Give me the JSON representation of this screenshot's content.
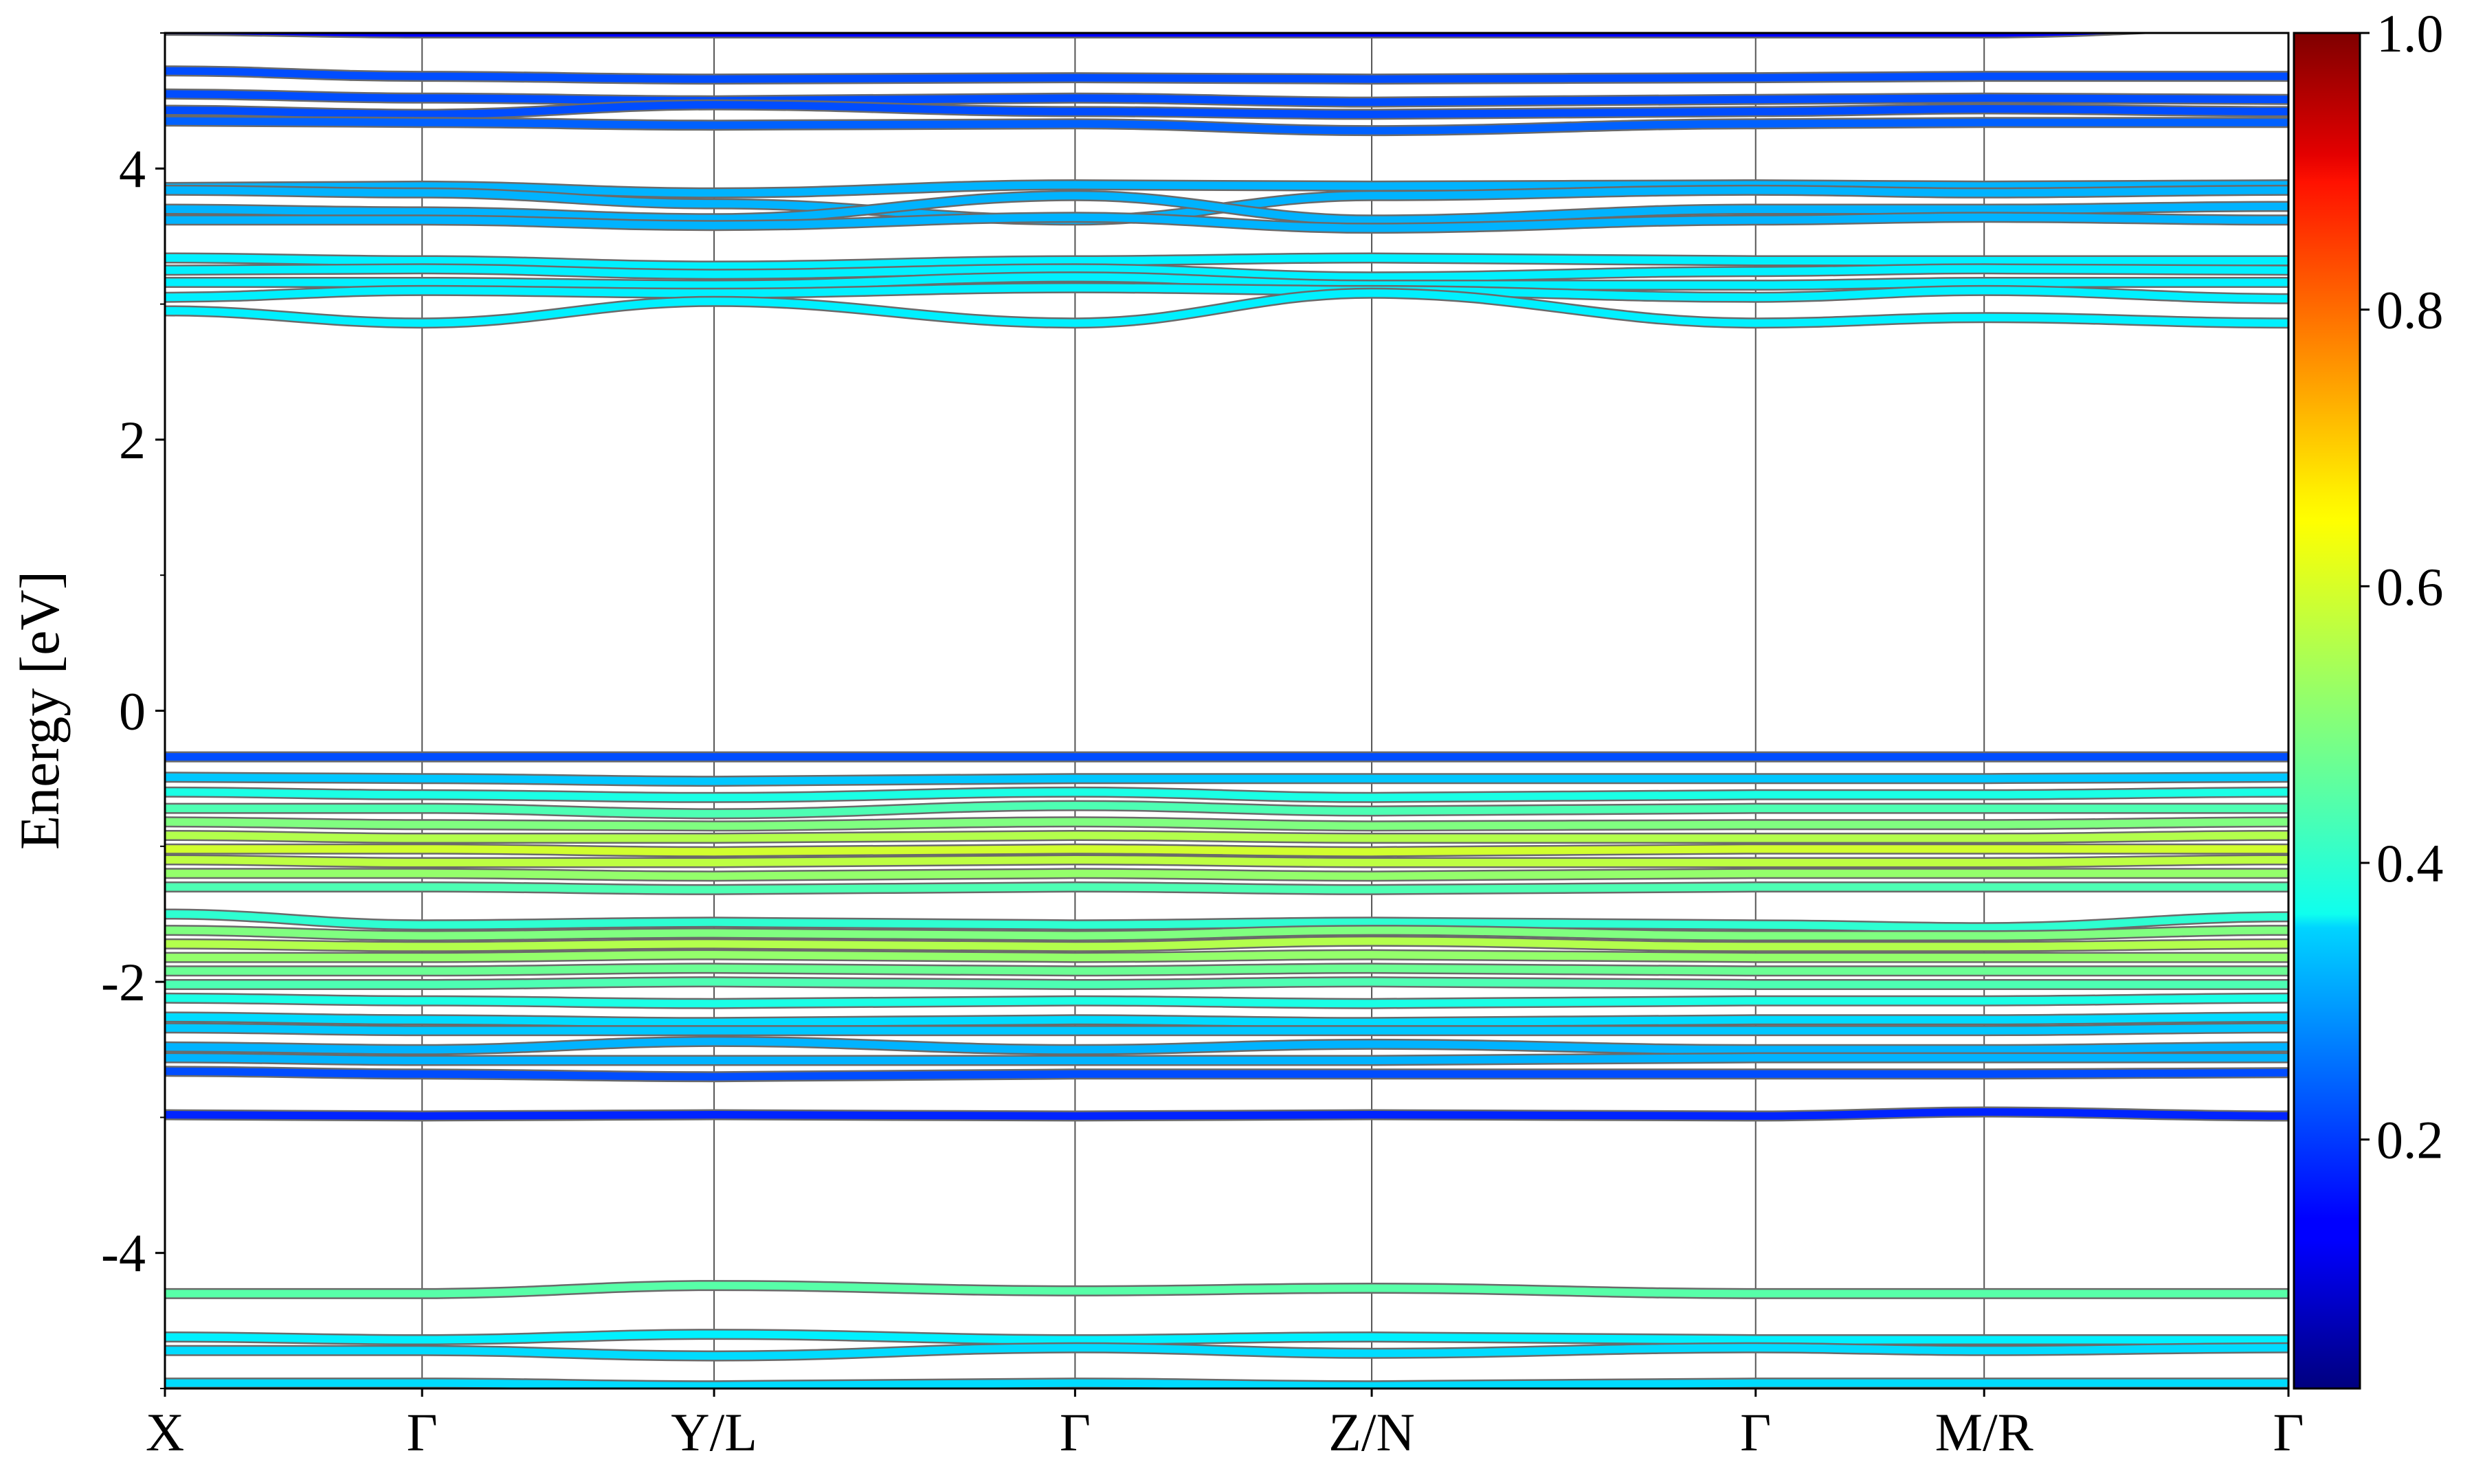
{
  "chart_data": {
    "type": "line",
    "title": "",
    "xlabel": "",
    "ylabel": "Energy [eV]",
    "ylim": [
      -5,
      5
    ],
    "yticks": [
      {
        "value": 4,
        "label": "4"
      },
      {
        "value": 2,
        "label": "2"
      },
      {
        "value": 0,
        "label": "0"
      },
      {
        "value": -2,
        "label": "-2"
      },
      {
        "value": -4,
        "label": "-4"
      }
    ],
    "kpoints": [
      {
        "label": "X",
        "pos": 0.0
      },
      {
        "label": "Γ",
        "pos": 0.1211
      },
      {
        "label": "Y/L",
        "pos": 0.2586
      },
      {
        "label": "Γ",
        "pos": 0.4286
      },
      {
        "label": "Z/N",
        "pos": 0.5683
      },
      {
        "label": "Γ",
        "pos": 0.7491
      },
      {
        "label": "M/R",
        "pos": 0.8567
      },
      {
        "label": "Γ",
        "pos": 1.0
      }
    ],
    "grid": "vertical lines at high-symmetry points",
    "colorbar": {
      "range": [
        0.02,
        1.0
      ],
      "ticks": [
        {
          "value": 0.2,
          "label": "0.2"
        },
        {
          "value": 0.4,
          "label": "0.4"
        },
        {
          "value": 0.6,
          "label": "0.6"
        },
        {
          "value": 0.8,
          "label": "0.8"
        },
        {
          "value": 1.0,
          "label": "1.0"
        }
      ],
      "colormap": "jet"
    },
    "series": [
      {
        "energies": [
          4.72,
          4.68,
          4.66,
          4.67,
          4.66,
          4.67,
          4.68,
          4.68
        ],
        "weight": 0.2
      },
      {
        "energies": [
          4.55,
          4.52,
          4.5,
          4.52,
          4.49,
          4.51,
          4.52,
          4.51
        ],
        "weight": 0.2
      },
      {
        "energies": [
          4.43,
          4.4,
          4.47,
          4.42,
          4.4,
          4.42,
          4.44,
          4.42
        ],
        "weight": 0.2
      },
      {
        "energies": [
          4.35,
          4.34,
          4.32,
          4.33,
          4.28,
          4.33,
          4.34,
          4.34
        ],
        "weight": 0.22
      },
      {
        "energies": [
          3.86,
          3.87,
          3.82,
          3.88,
          3.87,
          3.88,
          3.87,
          3.88
        ],
        "weight": 0.3
      },
      {
        "energies": [
          3.84,
          3.82,
          3.74,
          3.62,
          3.8,
          3.84,
          3.82,
          3.84
        ],
        "weight": 0.3
      },
      {
        "energies": [
          3.7,
          3.68,
          3.63,
          3.8,
          3.62,
          3.7,
          3.7,
          3.72
        ],
        "weight": 0.3
      },
      {
        "energies": [
          3.62,
          3.62,
          3.58,
          3.64,
          3.56,
          3.62,
          3.64,
          3.62
        ],
        "weight": 0.3
      },
      {
        "energies": [
          3.34,
          3.32,
          3.28,
          3.32,
          3.34,
          3.32,
          3.32,
          3.32
        ],
        "weight": 0.36
      },
      {
        "energies": [
          3.25,
          3.26,
          3.22,
          3.26,
          3.2,
          3.24,
          3.26,
          3.25
        ],
        "weight": 0.36
      },
      {
        "energies": [
          3.16,
          3.16,
          3.14,
          3.2,
          3.14,
          3.14,
          3.16,
          3.16
        ],
        "weight": 0.36
      },
      {
        "energies": [
          3.05,
          3.1,
          3.08,
          3.12,
          3.1,
          3.05,
          3.1,
          3.04
        ],
        "weight": 0.36
      },
      {
        "energies": [
          2.95,
          2.86,
          3.02,
          2.86,
          3.08,
          2.86,
          2.9,
          2.86
        ],
        "weight": 0.36
      },
      {
        "energies": [
          -0.34,
          -0.34,
          -0.34,
          -0.34,
          -0.34,
          -0.34,
          -0.34,
          -0.34
        ],
        "weight": 0.2
      },
      {
        "energies": [
          -0.49,
          -0.5,
          -0.52,
          -0.5,
          -0.5,
          -0.5,
          -0.5,
          -0.49
        ],
        "weight": 0.32
      },
      {
        "energies": [
          -0.6,
          -0.62,
          -0.64,
          -0.6,
          -0.64,
          -0.62,
          -0.62,
          -0.6
        ],
        "weight": 0.4
      },
      {
        "energies": [
          -0.72,
          -0.72,
          -0.76,
          -0.7,
          -0.74,
          -0.72,
          -0.72,
          -0.72
        ],
        "weight": 0.45
      },
      {
        "energies": [
          -0.82,
          -0.84,
          -0.85,
          -0.82,
          -0.85,
          -0.84,
          -0.84,
          -0.82
        ],
        "weight": 0.5
      },
      {
        "energies": [
          -0.92,
          -0.94,
          -0.94,
          -0.92,
          -0.94,
          -0.94,
          -0.94,
          -0.92
        ],
        "weight": 0.55
      },
      {
        "energies": [
          -1.02,
          -1.02,
          -1.04,
          -1.02,
          -1.04,
          -1.02,
          -1.02,
          -1.02
        ],
        "weight": 0.58
      },
      {
        "energies": [
          -1.1,
          -1.12,
          -1.12,
          -1.1,
          -1.12,
          -1.12,
          -1.12,
          -1.1
        ],
        "weight": 0.56
      },
      {
        "energies": [
          -1.2,
          -1.2,
          -1.22,
          -1.2,
          -1.22,
          -1.2,
          -1.2,
          -1.2
        ],
        "weight": 0.52
      },
      {
        "energies": [
          -1.3,
          -1.3,
          -1.32,
          -1.3,
          -1.32,
          -1.3,
          -1.3,
          -1.3
        ],
        "weight": 0.45
      },
      {
        "energies": [
          -1.5,
          -1.58,
          -1.56,
          -1.58,
          -1.56,
          -1.58,
          -1.6,
          -1.52
        ],
        "weight": 0.42
      },
      {
        "energies": [
          -1.62,
          -1.66,
          -1.64,
          -1.66,
          -1.62,
          -1.66,
          -1.66,
          -1.62
        ],
        "weight": 0.5
      },
      {
        "energies": [
          -1.72,
          -1.74,
          -1.72,
          -1.74,
          -1.7,
          -1.74,
          -1.74,
          -1.72
        ],
        "weight": 0.55
      },
      {
        "energies": [
          -1.82,
          -1.82,
          -1.8,
          -1.82,
          -1.8,
          -1.82,
          -1.82,
          -1.82
        ],
        "weight": 0.52
      },
      {
        "energies": [
          -1.92,
          -1.92,
          -1.9,
          -1.92,
          -1.9,
          -1.92,
          -1.92,
          -1.92
        ],
        "weight": 0.48
      },
      {
        "energies": [
          -2.02,
          -2.02,
          -2.0,
          -2.02,
          -2.0,
          -2.02,
          -2.02,
          -2.02
        ],
        "weight": 0.45
      },
      {
        "energies": [
          -2.12,
          -2.14,
          -2.16,
          -2.14,
          -2.16,
          -2.14,
          -2.14,
          -2.12
        ],
        "weight": 0.4
      },
      {
        "energies": [
          -2.26,
          -2.28,
          -2.3,
          -2.28,
          -2.3,
          -2.28,
          -2.28,
          -2.26
        ],
        "weight": 0.34
      },
      {
        "energies": [
          -2.34,
          -2.36,
          -2.36,
          -2.36,
          -2.36,
          -2.36,
          -2.36,
          -2.34
        ],
        "weight": 0.32
      },
      {
        "energies": [
          -2.48,
          -2.5,
          -2.44,
          -2.5,
          -2.46,
          -2.5,
          -2.5,
          -2.48
        ],
        "weight": 0.3
      },
      {
        "energies": [
          -2.56,
          -2.58,
          -2.58,
          -2.58,
          -2.58,
          -2.56,
          -2.56,
          -2.56
        ],
        "weight": 0.3
      },
      {
        "energies": [
          -2.66,
          -2.68,
          -2.7,
          -2.68,
          -2.68,
          -2.68,
          -2.68,
          -2.67
        ],
        "weight": 0.2
      },
      {
        "energies": [
          -2.98,
          -2.99,
          -2.98,
          -2.99,
          -2.98,
          -2.99,
          -2.96,
          -2.99
        ],
        "weight": 0.16
      },
      {
        "energies": [
          -4.3,
          -4.3,
          -4.24,
          -4.28,
          -4.26,
          -4.3,
          -4.3,
          -4.3
        ],
        "weight": 0.46
      },
      {
        "energies": [
          -4.62,
          -4.64,
          -4.6,
          -4.64,
          -4.62,
          -4.64,
          -4.64,
          -4.64
        ],
        "weight": 0.36
      },
      {
        "energies": [
          -4.72,
          -4.72,
          -4.76,
          -4.7,
          -4.74,
          -4.7,
          -4.72,
          -4.7
        ],
        "weight": 0.34
      },
      {
        "energies": [
          -4.96,
          -4.96,
          -4.98,
          -4.96,
          -4.98,
          -4.96,
          -4.96,
          -4.96
        ],
        "weight": 0.34
      },
      {
        "energies": [
          5.02,
          5.0,
          5.0,
          5.0,
          5.0,
          5.0,
          5.0,
          5.06
        ],
        "weight": 0.12
      }
    ]
  }
}
